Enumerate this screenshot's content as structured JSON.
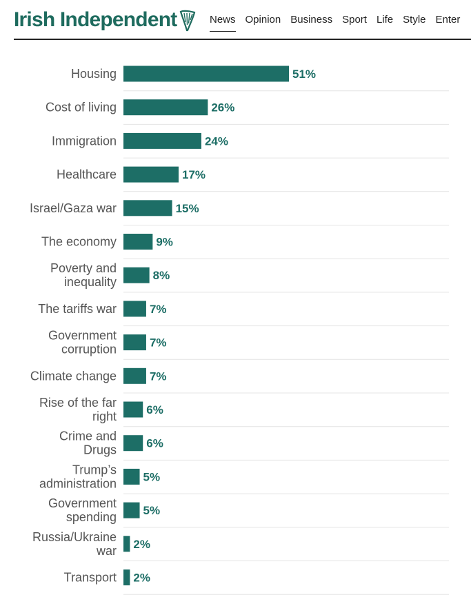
{
  "header": {
    "logo_text": "Irish Independent",
    "nav": [
      "News",
      "Opinion",
      "Business",
      "Sport",
      "Life",
      "Style",
      "Enter"
    ]
  },
  "colors": {
    "brand": "#1e6b5e",
    "bar": "#1d6e66",
    "label": "#555555",
    "rule": "#e4e4e4"
  },
  "icons": {
    "logo_mark": "harp-icon"
  },
  "chart_data": {
    "type": "bar",
    "orientation": "horizontal",
    "value_suffix": "%",
    "categories": [
      "Housing",
      "Cost of living",
      "Immigration",
      "Healthcare",
      "Israel/Gaza war",
      "The economy",
      "Poverty and inequality",
      "The tariffs war",
      "Government corruption",
      "Climate change",
      "Rise of the far right",
      "Crime and Drugs",
      "Trump’s administration",
      "Government spending",
      "Russia/Ukraine war",
      "Transport"
    ],
    "category_lines": [
      [
        "Housing"
      ],
      [
        "Cost of living"
      ],
      [
        "Immigration"
      ],
      [
        "Healthcare"
      ],
      [
        "Israel/Gaza war"
      ],
      [
        "The economy"
      ],
      [
        "Poverty and",
        "inequality"
      ],
      [
        "The tariffs war"
      ],
      [
        "Government",
        "corruption"
      ],
      [
        "Climate change"
      ],
      [
        "Rise of the far",
        "right"
      ],
      [
        "Crime and",
        "Drugs"
      ],
      [
        "Trump’s",
        "administration"
      ],
      [
        "Government",
        "spending"
      ],
      [
        "Russia/Ukraine",
        "war"
      ],
      [
        "Transport"
      ]
    ],
    "values": [
      51,
      26,
      24,
      17,
      15,
      9,
      8,
      7,
      7,
      7,
      6,
      6,
      5,
      5,
      2,
      2
    ],
    "xlim": [
      0,
      100
    ],
    "grid": false
  }
}
